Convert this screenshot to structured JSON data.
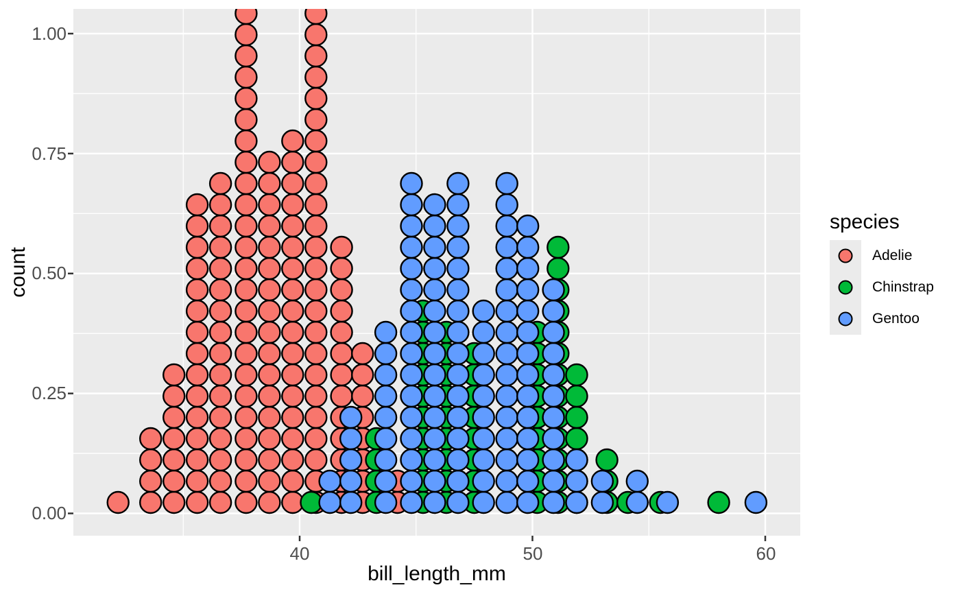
{
  "colors": {
    "panel_bg": "#EBEBEB",
    "grid": "#FFFFFF",
    "tick_mark": "#333333",
    "axis_text": "#4D4D4D",
    "title_text": "#000000",
    "dot_stroke": "#000000",
    "legend_key_bg": "#EBEBEB"
  },
  "chart_data": {
    "type": "dotplot",
    "title": "",
    "xlabel": "bill_length_mm",
    "ylabel": "count",
    "x_axis": {
      "ticks": [
        40,
        50,
        60
      ],
      "tick_labels": [
        "40",
        "50",
        "60"
      ],
      "minor_ticks": [
        35,
        45,
        55
      ],
      "range_mm": [
        31.5,
        60.9
      ]
    },
    "y_axis": {
      "ticks": [
        0,
        0.25,
        0.5,
        0.75,
        1.0
      ],
      "tick_labels": [
        "0.00",
        "0.25",
        "0.50",
        "0.75",
        "1.00"
      ],
      "minor_ticks": [
        0.125,
        0.375,
        0.625,
        0.875
      ],
      "range": [
        -0.04,
        1.05
      ]
    },
    "legend": {
      "title": "species",
      "entries": [
        {
          "label": "Adelie",
          "color": "#F8766D"
        },
        {
          "label": "Chinstrap",
          "color": "#00BA38"
        },
        {
          "label": "Gentoo",
          "color": "#619CFF"
        }
      ]
    },
    "dot_stacks_note": "stacks = [bill_length_mm, dot_count]; species drawn in listed order (later series overlap earlier ones); tallest Adelie stacks are clipped at the panel top",
    "series": [
      {
        "name": "Adelie",
        "color": "#F8766D",
        "stacks": [
          [
            32.2,
            1
          ],
          [
            33.6,
            4
          ],
          [
            34.6,
            7
          ],
          [
            35.6,
            15
          ],
          [
            36.6,
            16
          ],
          [
            37.7,
            24
          ],
          [
            38.7,
            17
          ],
          [
            39.7,
            18
          ],
          [
            40.7,
            24
          ],
          [
            41.8,
            13
          ],
          [
            42.7,
            8
          ],
          [
            44.2,
            2
          ]
        ]
      },
      {
        "name": "Chinstrap",
        "color": "#00BA38",
        "stacks": [
          [
            40.5,
            1
          ],
          [
            43.3,
            4
          ],
          [
            45.3,
            10
          ],
          [
            46.3,
            9
          ],
          [
            47.5,
            8
          ],
          [
            50.2,
            9
          ],
          [
            51.1,
            13
          ],
          [
            51.9,
            7
          ],
          [
            53.2,
            3
          ],
          [
            54.1,
            1
          ],
          [
            55.5,
            1
          ],
          [
            58.0,
            1
          ]
        ]
      },
      {
        "name": "Gentoo",
        "color": "#619CFF",
        "stacks": [
          [
            41.3,
            2
          ],
          [
            42.2,
            5
          ],
          [
            43.7,
            9
          ],
          [
            44.8,
            16
          ],
          [
            45.8,
            15
          ],
          [
            46.8,
            16
          ],
          [
            47.9,
            10
          ],
          [
            48.9,
            16
          ],
          [
            49.8,
            14
          ],
          [
            50.9,
            11
          ],
          [
            51.9,
            3
          ],
          [
            53.0,
            2
          ],
          [
            54.5,
            2
          ],
          [
            55.8,
            1
          ],
          [
            59.6,
            1
          ]
        ]
      }
    ]
  }
}
